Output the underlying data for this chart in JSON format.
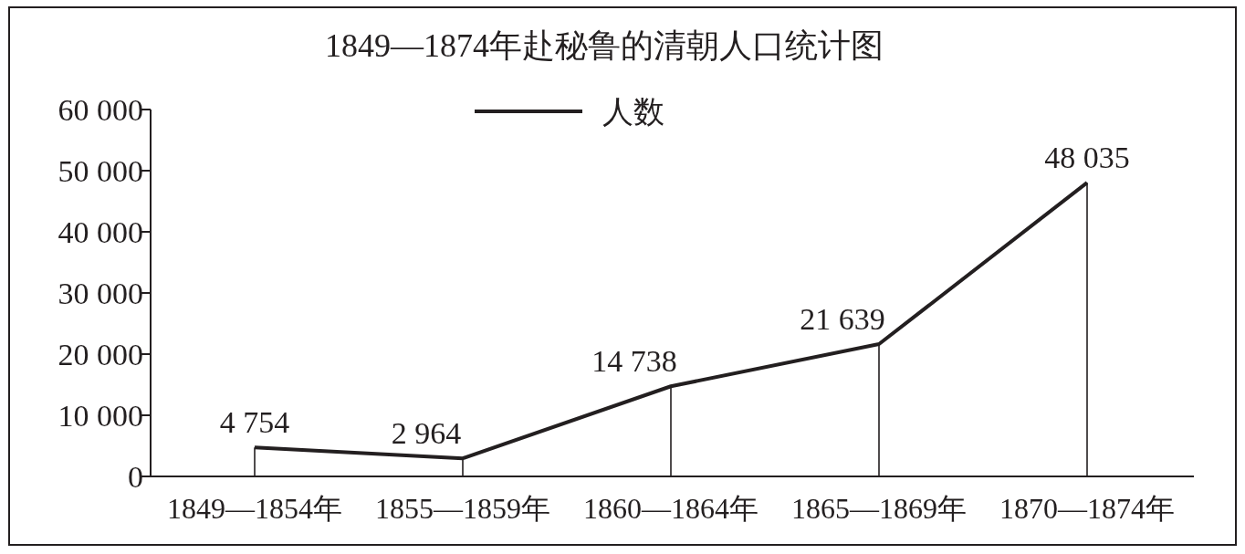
{
  "chart_data": {
    "type": "line",
    "title": "1849—1874年赴秘鲁的清朝人口统计图",
    "categories": [
      "1849—1854年",
      "1855—1859年",
      "1860—1864年",
      "1865—1869年",
      "1870—1874年"
    ],
    "series": [
      {
        "name": "人数",
        "color": "#231f20",
        "values": [
          4754,
          2964,
          14738,
          21639,
          48035
        ],
        "value_labels": [
          "4 754",
          "2 964",
          "14 738",
          "21 639",
          "48 035"
        ]
      }
    ],
    "ylim": [
      0,
      60000
    ],
    "yticks": [
      {
        "value": 0,
        "label": "0"
      },
      {
        "value": 10000,
        "label": "10 000"
      },
      {
        "value": 20000,
        "label": "20 000"
      },
      {
        "value": 30000,
        "label": "30 000"
      },
      {
        "value": 40000,
        "label": "40 000"
      },
      {
        "value": 50000,
        "label": "50 000"
      },
      {
        "value": 60000,
        "label": "60 000"
      }
    ],
    "legend": "top",
    "marker": "none",
    "line_style": "solid"
  }
}
